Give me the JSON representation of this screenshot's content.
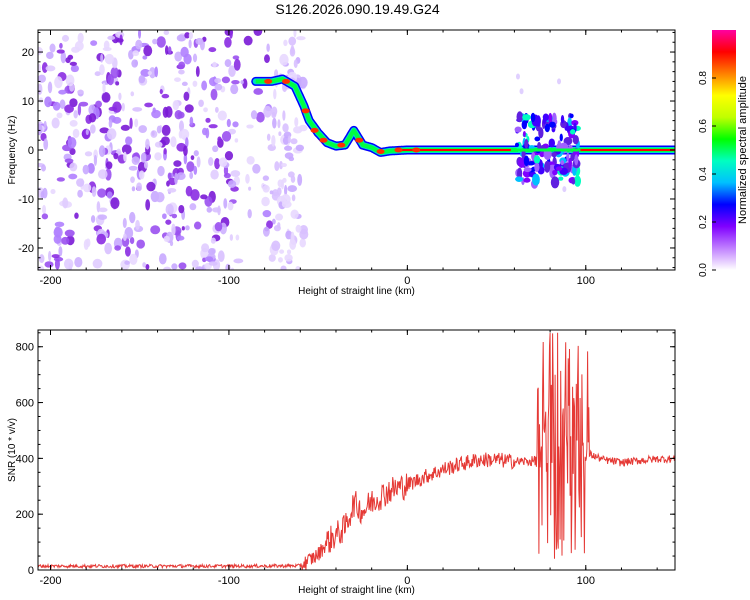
{
  "figure_title": "S126.2026.090.19.49.G24",
  "colors": {
    "snr_line": "#e53935",
    "axis": "#000000",
    "background": "#ffffff"
  },
  "chart_data": [
    {
      "type": "heatmap",
      "title": "S126.2026.090.19.49.G24",
      "xlabel": "Height of straight line (km)",
      "ylabel": "Frequency (Hz)",
      "xlim": [
        -207,
        150
      ],
      "ylim": [
        -24.5,
        24.5
      ],
      "xticks": [
        -200,
        -100,
        0,
        100
      ],
      "yticks": [
        -20,
        -10,
        0,
        10,
        20
      ],
      "grid": false,
      "noise_region_km": [
        -207,
        -58
      ],
      "ridge": {
        "x": [
          -85,
          -76,
          -70,
          -63,
          -58,
          -55,
          -50,
          -45,
          -40,
          -35,
          -30,
          -25,
          -20,
          -15,
          -10,
          0,
          20,
          60,
          62,
          70,
          75,
          80,
          85,
          90,
          95,
          150
        ],
        "freq": [
          14,
          14,
          14.5,
          13,
          9,
          6,
          3.5,
          1.5,
          0.8,
          1,
          4,
          1,
          0.5,
          -0.5,
          -0.2,
          0,
          0,
          0,
          0,
          0,
          0,
          0,
          0,
          0,
          0,
          0
        ]
      },
      "scatter_band_km": [
        61,
        96
      ],
      "colorbar": {
        "label": "Normalized spectral amplitude",
        "range": [
          0,
          1
        ],
        "ticks": [
          "0.0",
          "0.2",
          "0.4",
          "0.6",
          "0.8"
        ],
        "tick_values": [
          0,
          0.2,
          0.4,
          0.6,
          0.8
        ],
        "colors": [
          "#ffffff",
          "#c080ff",
          "#8000ff",
          "#0000ff",
          "#00c0ff",
          "#00ffc0",
          "#00ff00",
          "#c0ff00",
          "#ffff00",
          "#ff8000",
          "#ff0000",
          "#ff00a0"
        ]
      }
    },
    {
      "type": "line",
      "xlabel": "Height of straight line (km)",
      "ylabel": "SNR (10 * v/v)",
      "xlim": [
        -207,
        150
      ],
      "ylim": [
        0,
        860
      ],
      "xticks": [
        -200,
        -100,
        0,
        100
      ],
      "yticks": [
        0,
        200,
        400,
        600,
        800
      ],
      "grid": false,
      "series": [
        {
          "name": "SNR",
          "x": [
            -207,
            -150,
            -100,
            -60,
            -50,
            -45,
            -35,
            -30,
            -25,
            -20,
            -10,
            0,
            10,
            20,
            30,
            40,
            50,
            60,
            70,
            75,
            80,
            85,
            90,
            95,
            100,
            110,
            120,
            130,
            140,
            150
          ],
          "y": [
            14,
            14,
            14,
            15,
            55,
            100,
            150,
            240,
            210,
            245,
            285,
            305,
            335,
            360,
            380,
            395,
            395,
            388,
            390,
            400,
            430,
            460,
            520,
            480,
            420,
            395,
            385,
            392,
            398,
            398
          ]
        }
      ]
    }
  ]
}
